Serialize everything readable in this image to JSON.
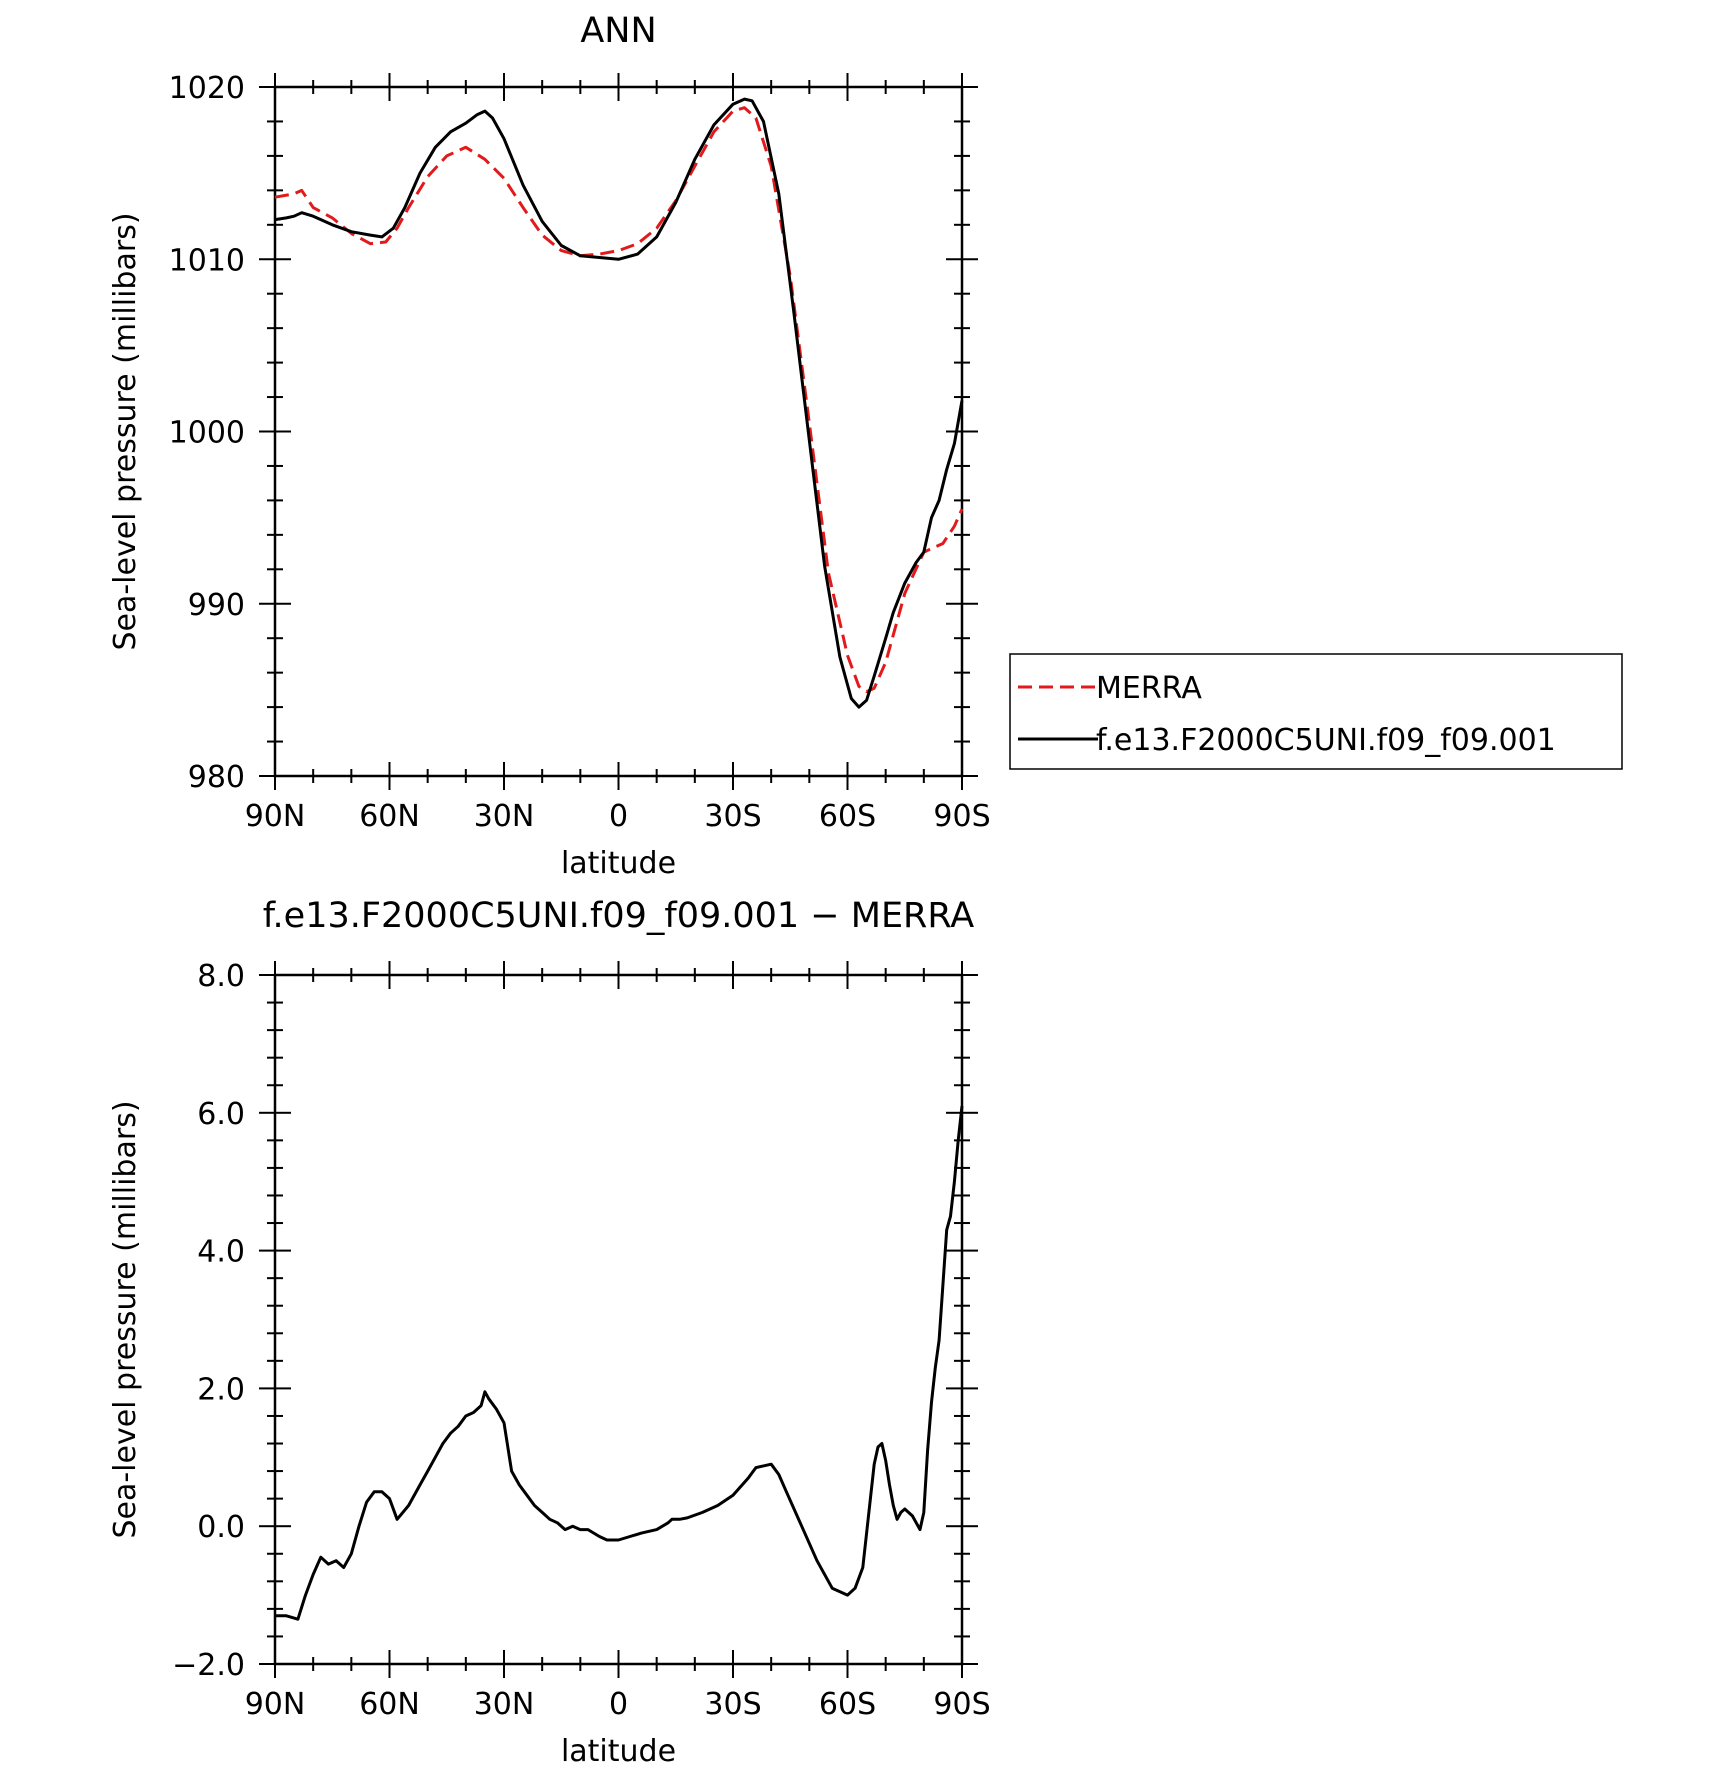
{
  "chart_data": [
    {
      "type": "line",
      "title": "ANN",
      "xlabel": "latitude",
      "ylabel": "Sea-level pressure (millibars)",
      "xlim": [
        90,
        -90
      ],
      "ylim": [
        980,
        1020
      ],
      "xticks": [
        {
          "v": 90,
          "label": "90N"
        },
        {
          "v": 60,
          "label": "60N"
        },
        {
          "v": 30,
          "label": "30N"
        },
        {
          "v": 0,
          "label": "0"
        },
        {
          "v": -30,
          "label": "30S"
        },
        {
          "v": -60,
          "label": "60S"
        },
        {
          "v": -90,
          "label": "90S"
        }
      ],
      "yticks": [
        {
          "v": 980,
          "label": "980"
        },
        {
          "v": 990,
          "label": "990"
        },
        {
          "v": 1000,
          "label": "1000"
        },
        {
          "v": 1010,
          "label": "1010"
        },
        {
          "v": 1020,
          "label": "1020"
        }
      ],
      "legend_position": "right",
      "series": [
        {
          "name": "MERRA",
          "color": "#e31a1c",
          "dash": true,
          "x": [
            90,
            85,
            83,
            80,
            75,
            70,
            65,
            61,
            58,
            55,
            50,
            45,
            40,
            35,
            30,
            25,
            20,
            15,
            10,
            5,
            0,
            -5,
            -10,
            -15,
            -20,
            -25,
            -30,
            -33,
            -36,
            -40,
            -45,
            -50,
            -55,
            -60,
            -63,
            -65,
            -67,
            -70,
            -75,
            -80,
            -85,
            -88,
            -90
          ],
          "values": [
            1013.6,
            1013.8,
            1014.0,
            1013.0,
            1012.4,
            1011.5,
            1010.9,
            1011.0,
            1011.8,
            1013.0,
            1014.8,
            1016.0,
            1016.5,
            1015.8,
            1014.7,
            1013.0,
            1011.4,
            1010.5,
            1010.2,
            1010.3,
            1010.5,
            1010.9,
            1011.8,
            1013.4,
            1015.4,
            1017.4,
            1018.6,
            1018.8,
            1018.2,
            1015.4,
            1009.0,
            1000.5,
            991.8,
            987.0,
            985.2,
            984.9,
            985.1,
            986.6,
            990.6,
            993.0,
            993.5,
            994.5,
            995.5
          ]
        },
        {
          "name": "f.e13.F2000C5UNI.f09_f09.001",
          "color": "#000000",
          "dash": false,
          "x": [
            90,
            87,
            85,
            83,
            80,
            75,
            70,
            65,
            62,
            59,
            56,
            52,
            48,
            44,
            40,
            37,
            35,
            33,
            30,
            25,
            20,
            15,
            10,
            5,
            0,
            -5,
            -10,
            -15,
            -20,
            -25,
            -30,
            -33,
            -35,
            -38,
            -42,
            -46,
            -50,
            -54,
            -58,
            -61,
            -63,
            -65,
            -67,
            -70,
            -72,
            -75,
            -78,
            -80,
            -82,
            -84,
            -86,
            -88,
            -90
          ],
          "values": [
            1012.3,
            1012.4,
            1012.5,
            1012.7,
            1012.5,
            1012.0,
            1011.6,
            1011.4,
            1011.3,
            1011.8,
            1013.0,
            1015.0,
            1016.5,
            1017.4,
            1017.9,
            1018.4,
            1018.6,
            1018.2,
            1017.0,
            1014.3,
            1012.2,
            1010.8,
            1010.2,
            1010.1,
            1010.0,
            1010.3,
            1011.3,
            1013.3,
            1015.8,
            1017.8,
            1019.0,
            1019.3,
            1019.2,
            1018.0,
            1013.8,
            1006.8,
            999.5,
            992.2,
            986.9,
            984.5,
            984.0,
            984.4,
            985.8,
            988.0,
            989.5,
            991.2,
            992.4,
            993.0,
            995.0,
            996.0,
            997.8,
            999.3,
            1001.8
          ]
        }
      ]
    },
    {
      "type": "line",
      "title": "f.e13.F2000C5UNI.f09_f09.001 − MERRA",
      "xlabel": "latitude",
      "ylabel": "Sea-level pressure (millibars)",
      "xlim": [
        90,
        -90
      ],
      "ylim": [
        -2,
        8
      ],
      "xticks": [
        {
          "v": 90,
          "label": "90N"
        },
        {
          "v": 60,
          "label": "60N"
        },
        {
          "v": 30,
          "label": "30N"
        },
        {
          "v": 0,
          "label": "0"
        },
        {
          "v": -30,
          "label": "30S"
        },
        {
          "v": -60,
          "label": "60S"
        },
        {
          "v": -90,
          "label": "90S"
        }
      ],
      "yticks": [
        {
          "v": -2,
          "label": "−2.0"
        },
        {
          "v": 0,
          "label": "0.0"
        },
        {
          "v": 2,
          "label": "2.0"
        },
        {
          "v": 4,
          "label": "4.0"
        },
        {
          "v": 6,
          "label": "6.0"
        },
        {
          "v": 8,
          "label": "8.0"
        }
      ],
      "series": [
        {
          "color": "#000000",
          "dash": false,
          "x": [
            90,
            87,
            84,
            82,
            80,
            78,
            76,
            74,
            72,
            70,
            68,
            66,
            64,
            62,
            60,
            58,
            55,
            52,
            50,
            48,
            46,
            44,
            42,
            40,
            38,
            36,
            35,
            34,
            32,
            30,
            28,
            26,
            24,
            22,
            20,
            18,
            16,
            14,
            12,
            10,
            8,
            5,
            3,
            0,
            -3,
            -6,
            -10,
            -13,
            -14,
            -16,
            -18,
            -22,
            -26,
            -30,
            -34,
            -36,
            -40,
            -42,
            -44,
            -48,
            -52,
            -56,
            -60,
            -62,
            -64,
            -66,
            -67,
            -68,
            -69,
            -70,
            -71,
            -72,
            -73,
            -74,
            -75,
            -77,
            -79,
            -80,
            -81,
            -82,
            -83,
            -84,
            -85,
            -86,
            -87,
            -88,
            -89,
            -90
          ],
          "values": [
            -1.3,
            -1.3,
            -1.35,
            -1.0,
            -0.7,
            -0.45,
            -0.55,
            -0.5,
            -0.6,
            -0.4,
            0.0,
            0.35,
            0.5,
            0.5,
            0.4,
            0.1,
            0.3,
            0.6,
            0.8,
            1.0,
            1.2,
            1.35,
            1.45,
            1.6,
            1.65,
            1.75,
            1.95,
            1.85,
            1.7,
            1.5,
            0.8,
            0.6,
            0.45,
            0.3,
            0.2,
            0.1,
            0.05,
            -0.05,
            0.0,
            -0.05,
            -0.05,
            -0.15,
            -0.2,
            -0.2,
            -0.15,
            -0.1,
            -0.05,
            0.05,
            0.1,
            0.1,
            0.12,
            0.2,
            0.3,
            0.45,
            0.7,
            0.85,
            0.9,
            0.75,
            0.5,
            0.0,
            -0.5,
            -0.9,
            -1.0,
            -0.9,
            -0.6,
            0.4,
            0.9,
            1.15,
            1.2,
            0.95,
            0.6,
            0.3,
            0.1,
            0.2,
            0.25,
            0.15,
            -0.05,
            0.2,
            1.1,
            1.8,
            2.3,
            2.7,
            3.5,
            4.3,
            4.5,
            5.0,
            5.6,
            6.1
          ]
        }
      ]
    }
  ]
}
